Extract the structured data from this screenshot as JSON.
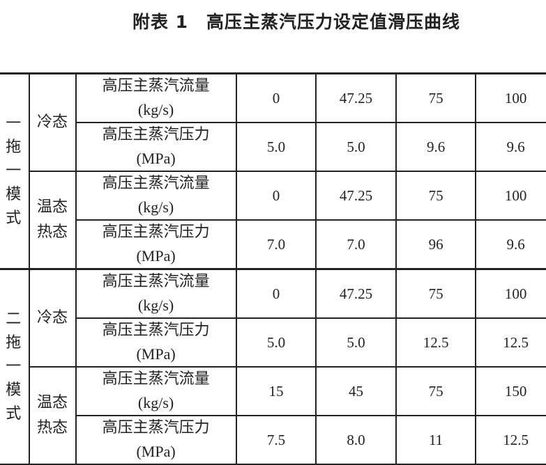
{
  "title": {
    "number": "附表 1",
    "text": "高压主蒸汽压力设定值滑压曲线"
  },
  "groups": [
    {
      "mode": [
        "一",
        "拖",
        "一",
        "模",
        "式"
      ],
      "states": [
        {
          "state": [
            "冷态"
          ],
          "rows": [
            {
              "label": "高压主蒸汽流量",
              "unit": "(kg/s)",
              "values": [
                "0",
                "47.25",
                "75",
                "100"
              ]
            },
            {
              "label": "高压主蒸汽压力",
              "unit": "(MPa)",
              "values": [
                "5.0",
                "5.0",
                "9.6",
                "9.6"
              ]
            }
          ]
        },
        {
          "state": [
            "温态",
            "热态"
          ],
          "rows": [
            {
              "label": "高压主蒸汽流量",
              "unit": "(kg/s)",
              "values": [
                "0",
                "47.25",
                "75",
                "100"
              ]
            },
            {
              "label": "高压主蒸汽压力",
              "unit": "(MPa)",
              "values": [
                "7.0",
                "7.0",
                "96",
                "9.6"
              ]
            }
          ]
        }
      ]
    },
    {
      "mode": [
        "二",
        "拖",
        "一",
        "模",
        "式"
      ],
      "states": [
        {
          "state": [
            "冷态"
          ],
          "rows": [
            {
              "label": "高压主蒸汽流量",
              "unit": "(kg/s)",
              "values": [
                "0",
                "47.25",
                "75",
                "100"
              ]
            },
            {
              "label": "高压主蒸汽压力",
              "unit": "(MPa)",
              "values": [
                "5.0",
                "5.0",
                "12.5",
                "12.5"
              ]
            }
          ]
        },
        {
          "state": [
            "温态",
            "热态"
          ],
          "rows": [
            {
              "label": "高压主蒸汽流量",
              "unit": "(kg/s)",
              "values": [
                "15",
                "45",
                "75",
                "150"
              ]
            },
            {
              "label": "高压主蒸汽压力",
              "unit": "(MPa)",
              "values": [
                "7.5",
                "8.0",
                "11",
                "12.5"
              ]
            }
          ]
        }
      ]
    }
  ]
}
